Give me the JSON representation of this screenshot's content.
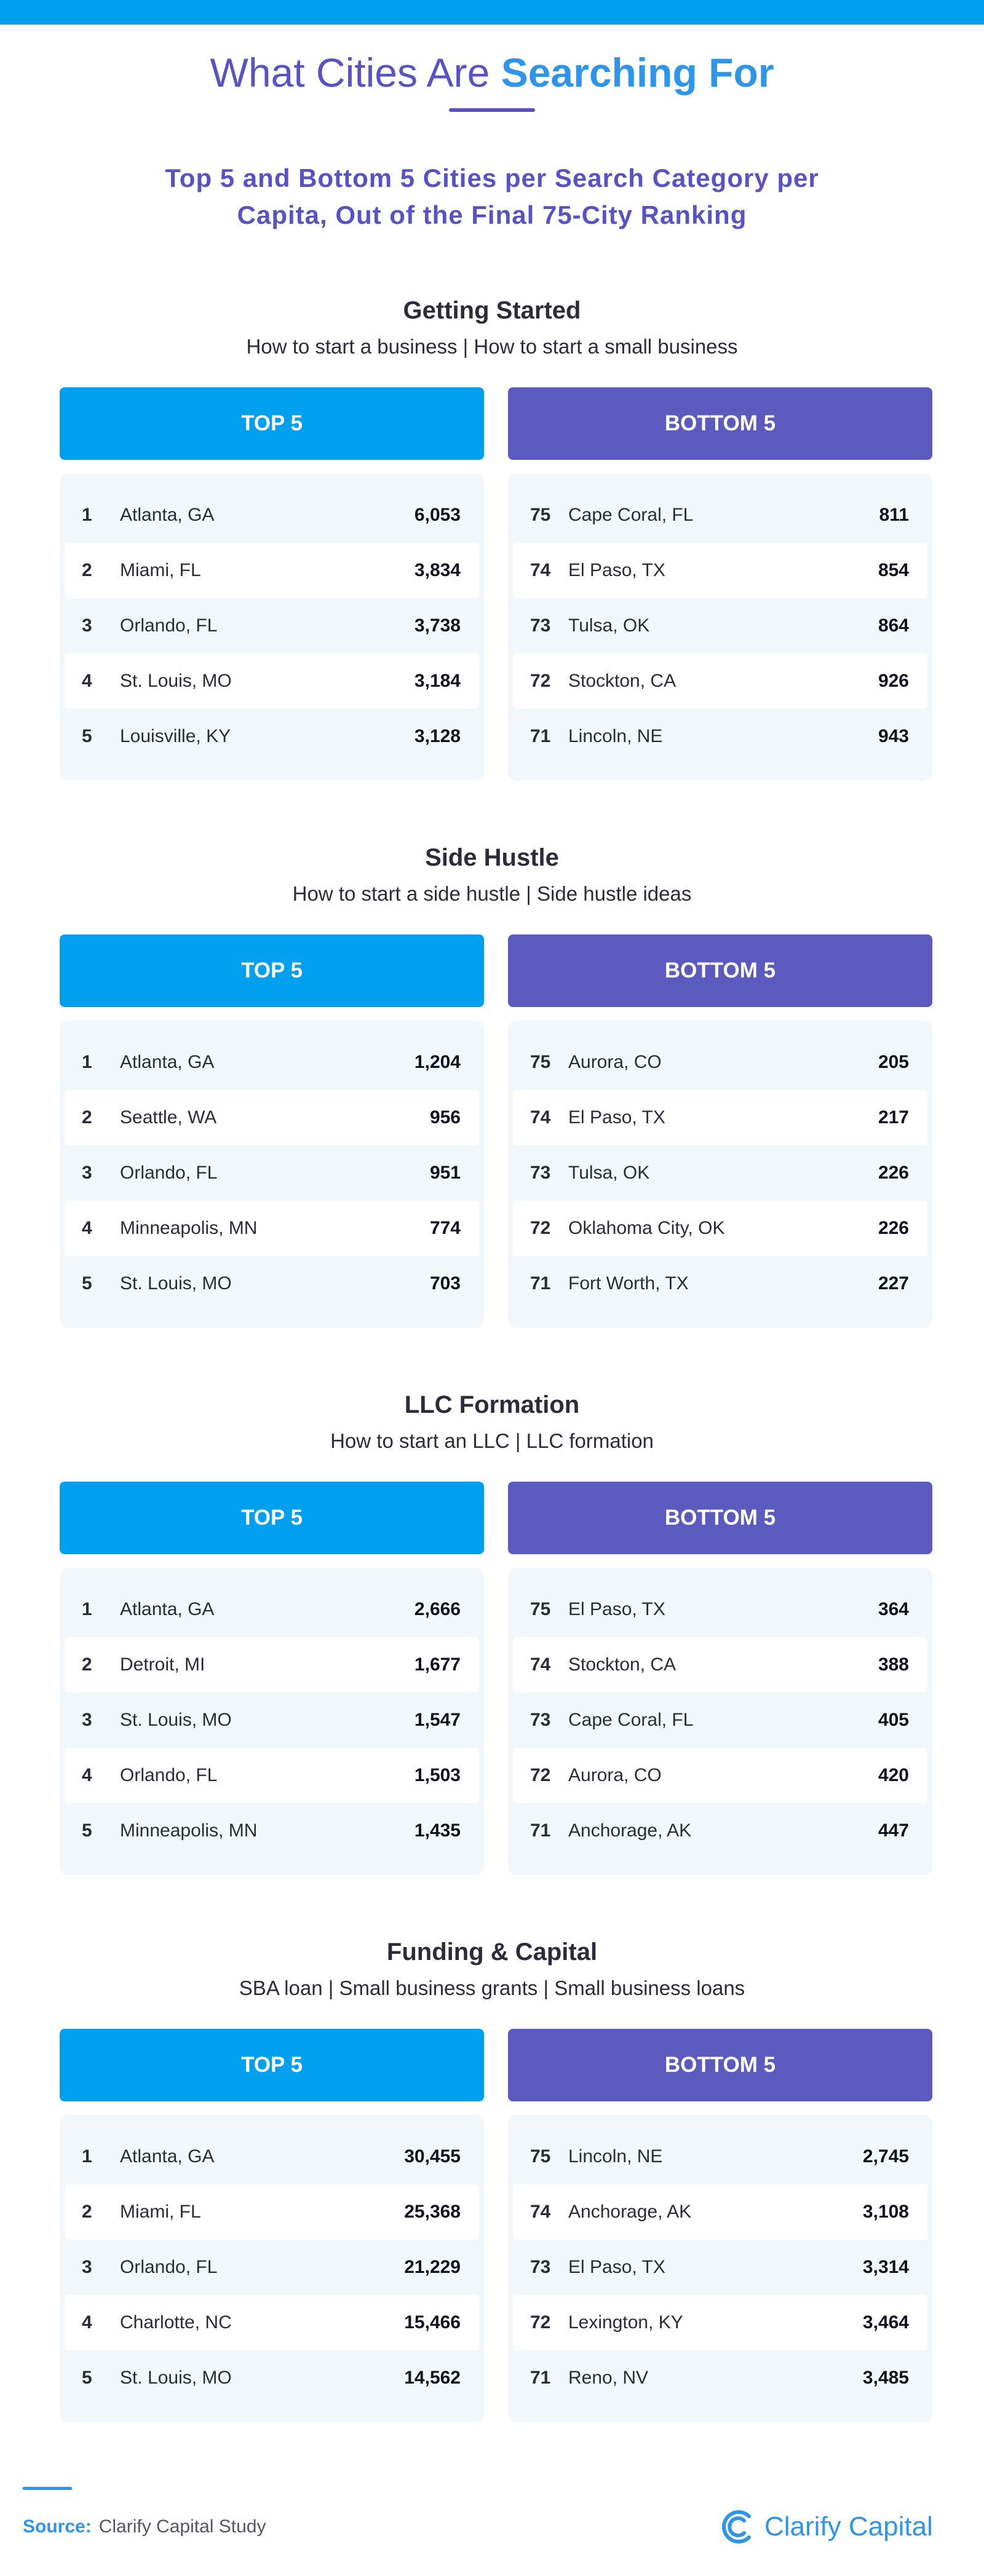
{
  "header": {
    "title_main": "What Cities Are",
    "title_highlight": "Searching For",
    "subtitle": "Top 5 and Bottom 5 Cities per Search Category per Capita, Out of the Final 75-City Ranking"
  },
  "labels": {
    "top": "TOP 5",
    "bottom": "BOTTOM 5"
  },
  "sections": [
    {
      "title": "Getting Started",
      "desc": "How to start a business | How to start a small business",
      "top": [
        {
          "rank": "1",
          "city": "Atlanta, GA",
          "value": "6,053"
        },
        {
          "rank": "2",
          "city": "Miami, FL",
          "value": "3,834"
        },
        {
          "rank": "3",
          "city": "Orlando, FL",
          "value": "3,738"
        },
        {
          "rank": "4",
          "city": "St. Louis, MO",
          "value": "3,184"
        },
        {
          "rank": "5",
          "city": "Louisville, KY",
          "value": "3,128"
        }
      ],
      "bottom": [
        {
          "rank": "75",
          "city": "Cape Coral, FL",
          "value": "811"
        },
        {
          "rank": "74",
          "city": "El Paso, TX",
          "value": "854"
        },
        {
          "rank": "73",
          "city": "Tulsa, OK",
          "value": "864"
        },
        {
          "rank": "72",
          "city": "Stockton, CA",
          "value": "926"
        },
        {
          "rank": "71",
          "city": "Lincoln, NE",
          "value": "943"
        }
      ]
    },
    {
      "title": "Side Hustle",
      "desc": "How to start a side hustle | Side hustle ideas",
      "top": [
        {
          "rank": "1",
          "city": "Atlanta, GA",
          "value": "1,204"
        },
        {
          "rank": "2",
          "city": "Seattle, WA",
          "value": "956"
        },
        {
          "rank": "3",
          "city": "Orlando, FL",
          "value": "951"
        },
        {
          "rank": "4",
          "city": "Minneapolis, MN",
          "value": "774"
        },
        {
          "rank": "5",
          "city": "St. Louis, MO",
          "value": "703"
        }
      ],
      "bottom": [
        {
          "rank": "75",
          "city": "Aurora, CO",
          "value": "205"
        },
        {
          "rank": "74",
          "city": "El Paso, TX",
          "value": "217"
        },
        {
          "rank": "73",
          "city": "Tulsa, OK",
          "value": "226"
        },
        {
          "rank": "72",
          "city": "Oklahoma City, OK",
          "value": "226"
        },
        {
          "rank": "71",
          "city": "Fort Worth, TX",
          "value": "227"
        }
      ]
    },
    {
      "title": "LLC Formation",
      "desc": "How to start an LLC | LLC formation",
      "top": [
        {
          "rank": "1",
          "city": "Atlanta, GA",
          "value": "2,666"
        },
        {
          "rank": "2",
          "city": "Detroit, MI",
          "value": "1,677"
        },
        {
          "rank": "3",
          "city": "St. Louis, MO",
          "value": "1,547"
        },
        {
          "rank": "4",
          "city": "Orlando, FL",
          "value": "1,503"
        },
        {
          "rank": "5",
          "city": "Minneapolis, MN",
          "value": "1,435"
        }
      ],
      "bottom": [
        {
          "rank": "75",
          "city": "El Paso, TX",
          "value": "364"
        },
        {
          "rank": "74",
          "city": "Stockton, CA",
          "value": "388"
        },
        {
          "rank": "73",
          "city": "Cape Coral, FL",
          "value": "405"
        },
        {
          "rank": "72",
          "city": "Aurora, CO",
          "value": "420"
        },
        {
          "rank": "71",
          "city": "Anchorage, AK",
          "value": "447"
        }
      ]
    },
    {
      "title": "Funding & Capital",
      "desc": "SBA loan | Small business grants | Small business loans",
      "top": [
        {
          "rank": "1",
          "city": "Atlanta, GA",
          "value": "30,455"
        },
        {
          "rank": "2",
          "city": "Miami, FL",
          "value": "25,368"
        },
        {
          "rank": "3",
          "city": "Orlando, FL",
          "value": "21,229"
        },
        {
          "rank": "4",
          "city": "Charlotte, NC",
          "value": "15,466"
        },
        {
          "rank": "5",
          "city": "St. Louis, MO",
          "value": "14,562"
        }
      ],
      "bottom": [
        {
          "rank": "75",
          "city": "Lincoln, NE",
          "value": "2,745"
        },
        {
          "rank": "74",
          "city": "Anchorage, AK",
          "value": "3,108"
        },
        {
          "rank": "73",
          "city": "El Paso, TX",
          "value": "3,314"
        },
        {
          "rank": "72",
          "city": "Lexington, KY",
          "value": "3,464"
        },
        {
          "rank": "71",
          "city": "Reno, NV",
          "value": "3,485"
        }
      ]
    }
  ],
  "footer": {
    "source_label": "Source:",
    "source_text": "Clarify Capital Study",
    "brand": "Clarify Capital",
    "brand_icon": "clarify-capital-logo-icon"
  },
  "colors": {
    "top_accent": "#00a0ee",
    "bottom_accent": "#5a5abf",
    "title_purple": "#5a52c4",
    "brand_blue": "#2f95e8"
  }
}
